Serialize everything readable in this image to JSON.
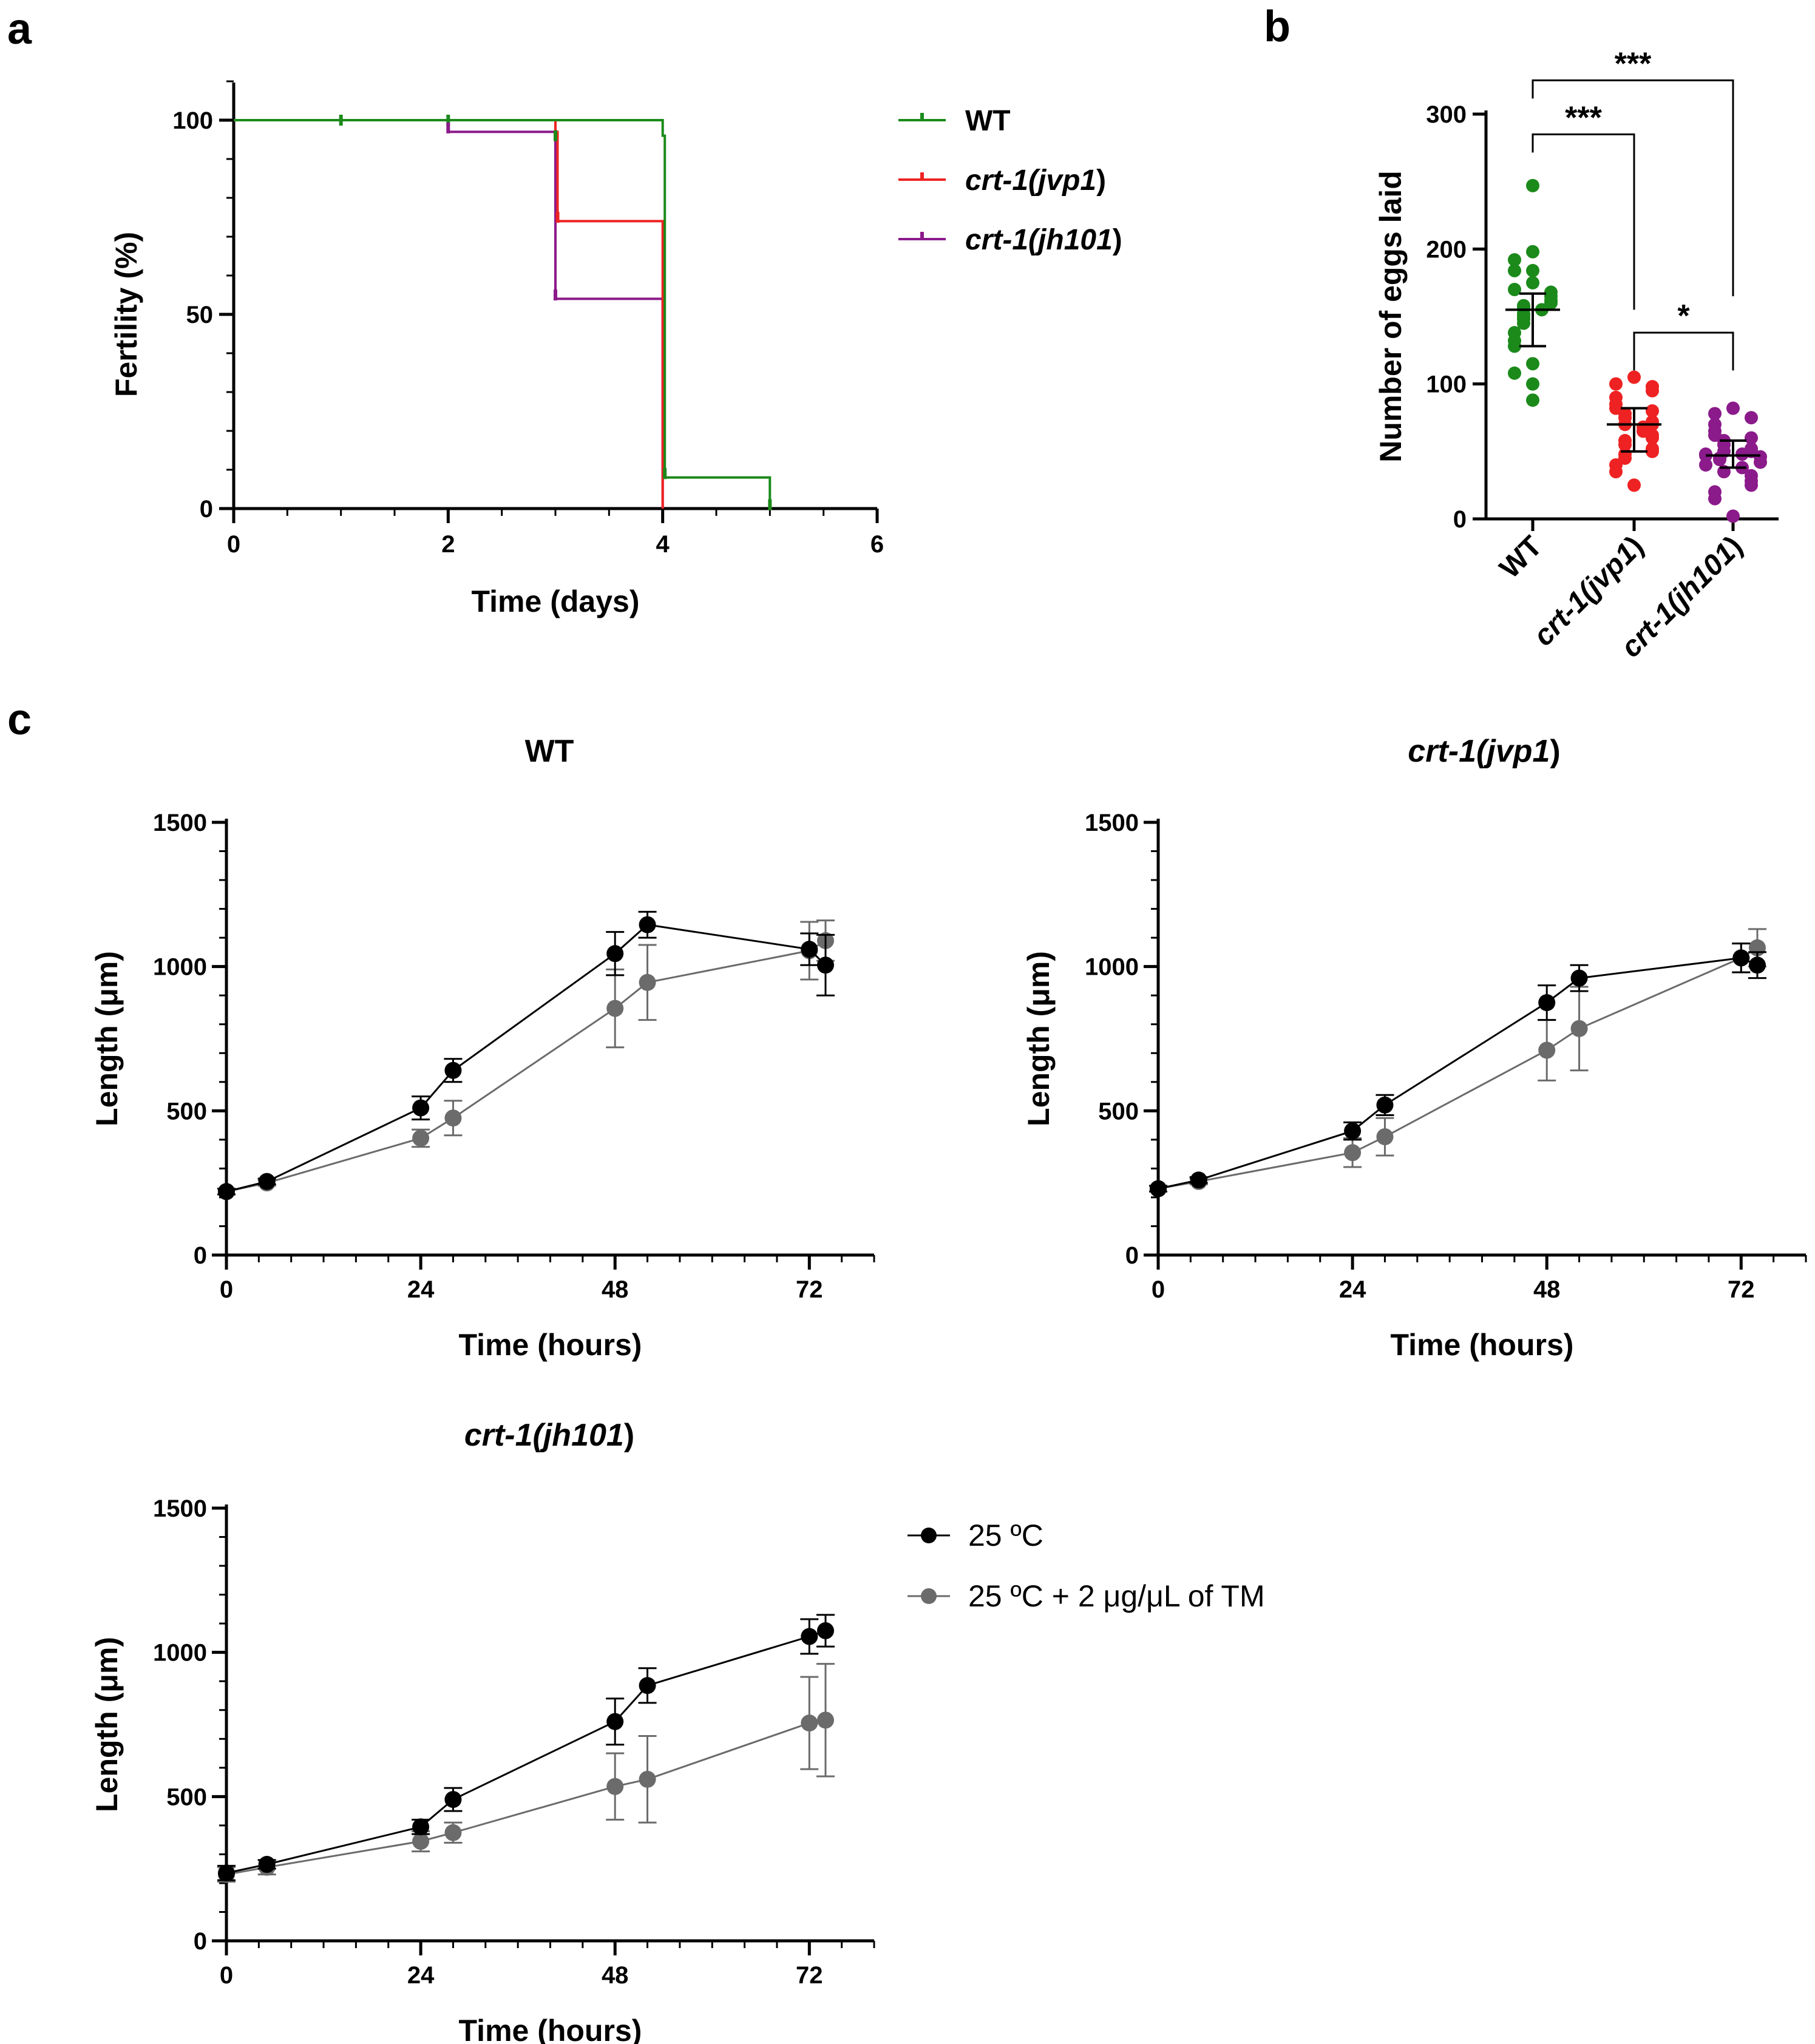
{
  "panel_labels": {
    "a": "a",
    "b": "b",
    "c": "c"
  },
  "colors": {
    "wt": "#1b8a1b",
    "jvp1": "#ee2222",
    "jh101": "#8b1a8b",
    "ctrl": "#000000",
    "tm": "#6b6b6b"
  },
  "chart_data": [
    {
      "id": "a",
      "type": "line",
      "subtype": "kaplan-meier",
      "title": "",
      "xlabel": "Time (days)",
      "ylabel": "Fertility (%)",
      "xlim": [
        0,
        6
      ],
      "ylim": [
        0,
        100
      ],
      "xticks": [
        "0",
        "2",
        "4",
        "6"
      ],
      "yticks": [
        "0",
        "50",
        "100"
      ],
      "xtick_values": [
        0,
        2,
        4,
        6
      ],
      "ytick_values": [
        0,
        50,
        100
      ],
      "legend": [
        {
          "key": "wt",
          "parts": [
            {
              "t": "WT",
              "i": false
            }
          ]
        },
        {
          "key": "jvp1",
          "parts": [
            {
              "t": "crt-1(",
              "i": true
            },
            {
              "t": "jvp1",
              "i": true
            },
            {
              "t": ")",
              "i": false
            }
          ]
        },
        {
          "key": "jh101",
          "parts": [
            {
              "t": "crt-1(",
              "i": true
            },
            {
              "t": "jh101",
              "i": true
            },
            {
              "t": ")",
              "i": false
            }
          ]
        }
      ],
      "legend_position": "right",
      "series": [
        {
          "key": "wt",
          "name": "WT",
          "steps": [
            [
              0,
              100
            ],
            [
              4,
              100
            ],
            [
              4,
              96
            ],
            [
              4.02,
              96
            ],
            [
              4.02,
              8
            ],
            [
              5,
              8
            ],
            [
              5,
              0
            ]
          ]
        },
        {
          "key": "jvp1",
          "name": "crt-1(jvp1)",
          "steps": [
            [
              0,
              100
            ],
            [
              3,
              100
            ],
            [
              3,
              97
            ],
            [
              3.02,
              97
            ],
            [
              3.02,
              74
            ],
            [
              4,
              74
            ],
            [
              4,
              0
            ]
          ]
        },
        {
          "key": "jh101",
          "name": "crt-1(jh101)",
          "steps": [
            [
              0,
              100
            ],
            [
              2,
              100
            ],
            [
              2,
              97
            ],
            [
              3,
              97
            ],
            [
              3,
              54
            ],
            [
              4,
              54
            ],
            [
              4,
              0
            ]
          ]
        }
      ],
      "censor_marks": [
        {
          "key": "wt",
          "x": 1,
          "y": 100
        },
        {
          "key": "wt",
          "x": 2,
          "y": 100
        },
        {
          "key": "wt",
          "x": 3,
          "y": 96
        },
        {
          "key": "wt",
          "x": 4.02,
          "y": 9
        },
        {
          "key": "wt",
          "x": 5,
          "y": 1
        },
        {
          "key": "jvp1",
          "x": 3.02,
          "y": 75
        },
        {
          "key": "jh101",
          "x": 2,
          "y": 98
        },
        {
          "key": "jh101",
          "x": 3,
          "y": 55
        }
      ]
    },
    {
      "id": "b",
      "type": "scatter",
      "subtype": "dot-plot",
      "title": "",
      "xlabel": "",
      "ylabel": "Number of eggs laid",
      "ylim": [
        0,
        300
      ],
      "yticks": [
        "0",
        "100",
        "200",
        "300"
      ],
      "ytick_values": [
        0,
        100,
        200,
        300
      ],
      "categories": [
        {
          "key": "wt",
          "parts": [
            {
              "t": "WT",
              "i": false
            }
          ]
        },
        {
          "key": "jvp1",
          "parts": [
            {
              "t": "crt-1(",
              "i": true
            },
            {
              "t": "jvp1",
              "i": true
            },
            {
              "t": ")",
              "i": false
            }
          ]
        },
        {
          "key": "jh101",
          "parts": [
            {
              "t": "crt-1(",
              "i": true
            },
            {
              "t": "jh101",
              "i": true
            },
            {
              "t": ")",
              "i": false
            }
          ]
        }
      ],
      "groups": [
        {
          "key": "wt",
          "median": 155,
          "q1": 128,
          "q3": 167,
          "points": [
            247,
            198,
            192,
            184,
            184,
            175,
            170,
            168,
            165,
            162,
            160,
            158,
            157,
            155,
            152,
            150,
            148,
            145,
            138,
            132,
            128,
            115,
            108,
            100,
            88
          ]
        },
        {
          "key": "jvp1",
          "median": 70,
          "q1": 50,
          "q3": 82,
          "points": [
            105,
            100,
            98,
            95,
            90,
            85,
            82,
            80,
            78,
            75,
            72,
            70,
            70,
            68,
            65,
            62,
            60,
            58,
            55,
            52,
            50,
            48,
            45,
            40,
            35,
            25
          ]
        },
        {
          "key": "jh101",
          "median": 47,
          "q1": 38,
          "q3": 58,
          "points": [
            82,
            78,
            75,
            70,
            65,
            62,
            60,
            58,
            55,
            52,
            50,
            50,
            48,
            48,
            47,
            46,
            45,
            44,
            42,
            40,
            38,
            35,
            32,
            28,
            25,
            20,
            15,
            2
          ]
        }
      ],
      "significance": [
        {
          "from": "wt",
          "to": "jh101",
          "label": "***",
          "level": 325
        },
        {
          "from": "wt",
          "to": "jvp1",
          "label": "***",
          "level": 285
        },
        {
          "from": "jvp1",
          "to": "jh101",
          "label": "*",
          "level": 138
        }
      ]
    },
    {
      "id": "c-wt",
      "type": "line",
      "title_parts": [
        {
          "t": "WT",
          "i": false
        }
      ],
      "xlabel": "Time (hours)",
      "ylabel": "Length (μm)",
      "xlim": [
        0,
        80
      ],
      "ylim": [
        0,
        1500
      ],
      "xticks": [
        "0",
        "24",
        "48",
        "72"
      ],
      "yticks": [
        "0",
        "500",
        "1000",
        "1500"
      ],
      "xtick_values": [
        0,
        24,
        48,
        72
      ],
      "ytick_values": [
        0,
        500,
        1000,
        1500
      ],
      "series": [
        {
          "key": "ctrl",
          "name": "25 ºC",
          "x": [
            0,
            5,
            24,
            28,
            48,
            52,
            72,
            74
          ],
          "y": [
            220,
            255,
            510,
            640,
            1045,
            1145,
            1060,
            1005
          ],
          "err": [
            10,
            10,
            40,
            40,
            75,
            45,
            55,
            105
          ]
        },
        {
          "key": "tm",
          "name": "25 ºC + 2 μg/μL of TM",
          "x": [
            0,
            5,
            24,
            28,
            48,
            52,
            72,
            74
          ],
          "y": [
            220,
            250,
            405,
            475,
            855,
            945,
            1055,
            1090
          ],
          "err": [
            10,
            10,
            30,
            60,
            135,
            130,
            100,
            70
          ]
        }
      ]
    },
    {
      "id": "c-jvp1",
      "type": "line",
      "title_parts": [
        {
          "t": "crt-1(",
          "i": true
        },
        {
          "t": "jvp1",
          "i": true
        },
        {
          "t": ")",
          "i": false
        }
      ],
      "xlabel": "Time (hours)",
      "ylabel": "Length (μm)",
      "xlim": [
        0,
        80
      ],
      "ylim": [
        0,
        1500
      ],
      "xticks": [
        "0",
        "24",
        "48",
        "72"
      ],
      "yticks": [
        "0",
        "500",
        "1000",
        "1500"
      ],
      "xtick_values": [
        0,
        24,
        48,
        72
      ],
      "ytick_values": [
        0,
        500,
        1000,
        1500
      ],
      "series": [
        {
          "key": "ctrl",
          "name": "25 ºC",
          "x": [
            0,
            5,
            24,
            28,
            48,
            52,
            72,
            74
          ],
          "y": [
            230,
            260,
            430,
            520,
            875,
            960,
            1030,
            1005
          ],
          "err": [
            10,
            10,
            30,
            35,
            60,
            45,
            50,
            45
          ]
        },
        {
          "key": "tm",
          "name": "25 ºC + 2 μg/μL of TM",
          "x": [
            0,
            5,
            24,
            28,
            48,
            52,
            72,
            74
          ],
          "y": [
            230,
            255,
            355,
            410,
            710,
            785,
            1030,
            1065
          ],
          "err": [
            10,
            10,
            50,
            65,
            105,
            145,
            50,
            65
          ]
        }
      ]
    },
    {
      "id": "c-jh101",
      "type": "line",
      "title_parts": [
        {
          "t": "crt-1(",
          "i": true
        },
        {
          "t": "jh101",
          "i": true
        },
        {
          "t": ")",
          "i": false
        }
      ],
      "xlabel": "Time (hours)",
      "ylabel": "Length (μm)",
      "xlim": [
        0,
        80
      ],
      "ylim": [
        0,
        1500
      ],
      "xticks": [
        "0",
        "24",
        "48",
        "72"
      ],
      "yticks": [
        "0",
        "500",
        "1000",
        "1500"
      ],
      "xtick_values": [
        0,
        24,
        48,
        72
      ],
      "ytick_values": [
        0,
        500,
        1000,
        1500
      ],
      "legend": [
        {
          "key": "ctrl",
          "label": "25 ºC"
        },
        {
          "key": "tm",
          "label": "25 ºC + 2 μg/μL of TM"
        }
      ],
      "legend_position": "right",
      "series": [
        {
          "key": "ctrl",
          "name": "25 ºC",
          "x": [
            0,
            5,
            24,
            28,
            48,
            52,
            72,
            74
          ],
          "y": [
            235,
            265,
            395,
            490,
            760,
            885,
            1055,
            1075
          ],
          "err": [
            25,
            15,
            25,
            40,
            80,
            60,
            60,
            55
          ]
        },
        {
          "key": "tm",
          "name": "25 ºC + 2 μg/μL of TM",
          "x": [
            0,
            5,
            24,
            28,
            48,
            52,
            72,
            74
          ],
          "y": [
            230,
            255,
            345,
            375,
            535,
            560,
            755,
            765
          ],
          "err": [
            25,
            25,
            35,
            35,
            115,
            150,
            160,
            195
          ]
        }
      ]
    }
  ]
}
